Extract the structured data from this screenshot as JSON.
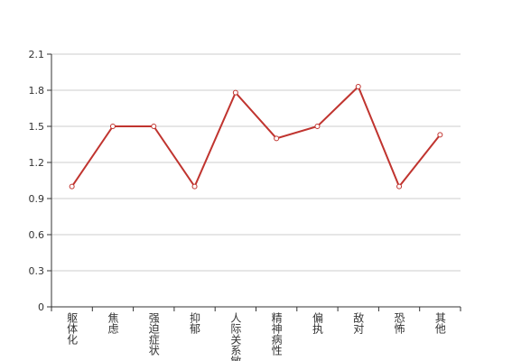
{
  "chart_data": {
    "type": "line",
    "categories": [
      "躯体化",
      "焦虑",
      "强迫症状",
      "抑郁",
      "人际关系敏感",
      "精神病性",
      "偏执",
      "敌对",
      "恐怖",
      "其他"
    ],
    "series": [
      {
        "color": "#c0342f",
        "values": [
          1.0,
          1.5,
          1.5,
          1.0,
          1.78,
          1.4,
          1.5,
          1.83,
          1.0,
          1.43
        ]
      }
    ],
    "ylim": [
      0,
      2.1
    ],
    "yticks": [
      0,
      0.3,
      0.6,
      0.9,
      1.2,
      1.5,
      1.8,
      2.1
    ],
    "grid": true
  }
}
